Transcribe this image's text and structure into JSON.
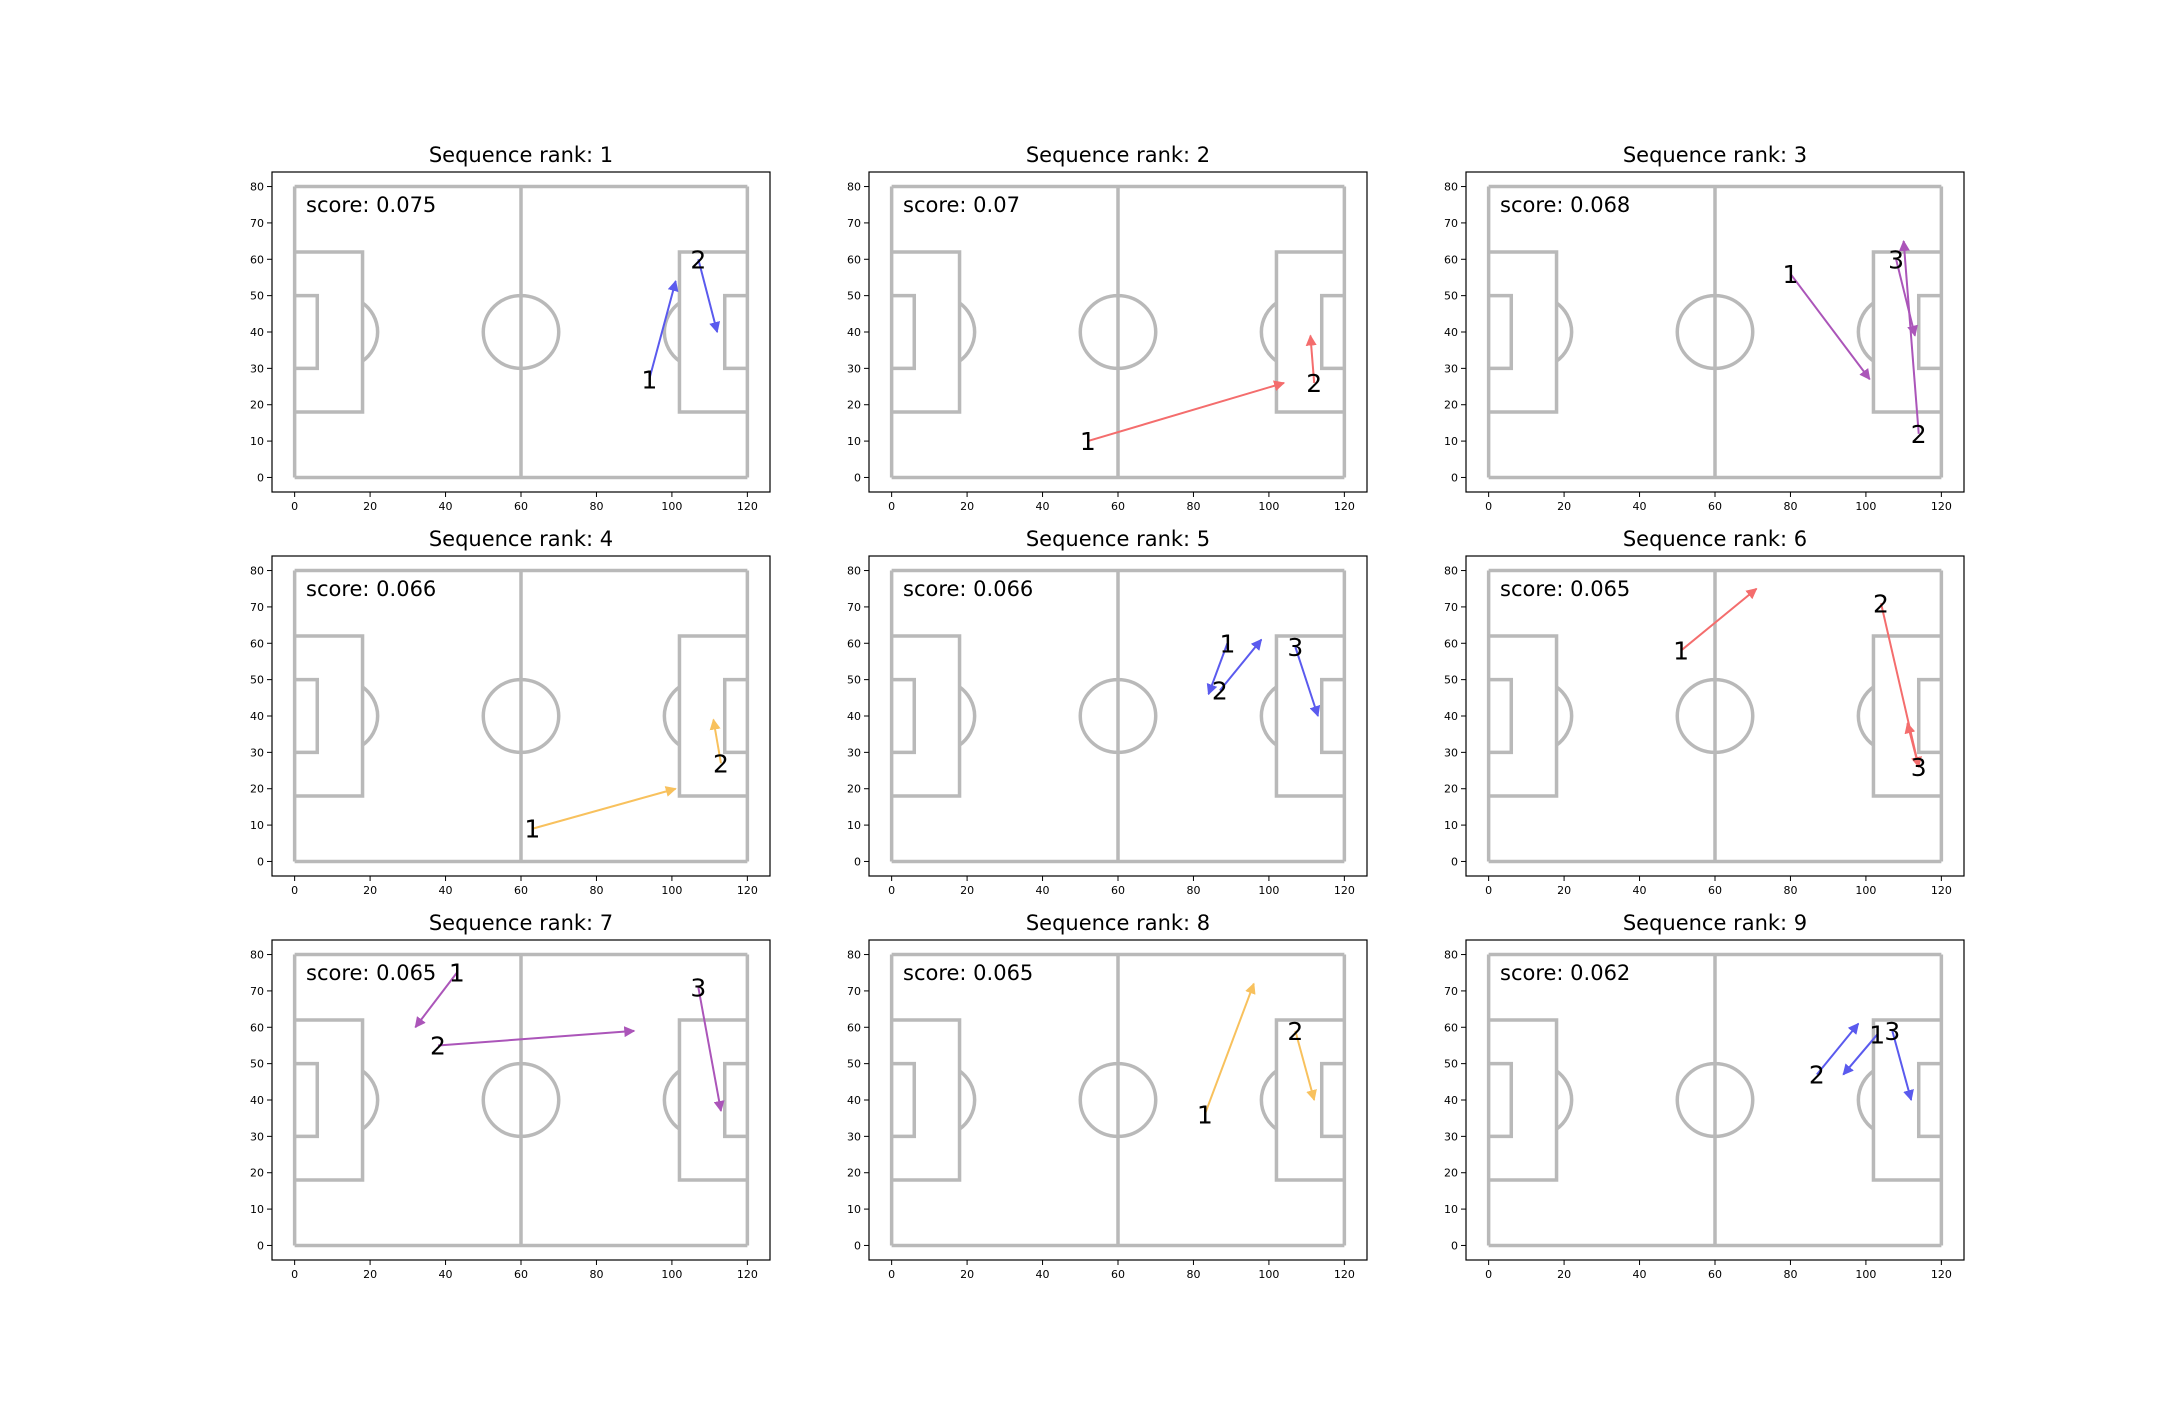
{
  "figure": {
    "pitch_length": 120,
    "pitch_width": 80,
    "xticks": [
      0,
      20,
      40,
      60,
      80,
      100,
      120
    ],
    "yticks": [
      0,
      10,
      20,
      30,
      40,
      50,
      60,
      70,
      80
    ],
    "xlim": [
      -6,
      126
    ],
    "ylim": [
      -4,
      84
    ]
  },
  "chart_data": [
    {
      "type": "scatter",
      "title": "Sequence rank: 1",
      "score_text": "score: 0.075",
      "color": "#5a5aee",
      "actions": [
        {
          "label": "1",
          "start": [
            94,
            27
          ],
          "end": [
            101,
            54
          ]
        },
        {
          "label": "2",
          "start": [
            107,
            60
          ],
          "end": [
            112,
            40
          ]
        }
      ]
    },
    {
      "type": "scatter",
      "title": "Sequence rank: 2",
      "score_text": "score: 0.07",
      "color": "#f46d6d",
      "actions": [
        {
          "label": "1",
          "start": [
            52,
            10
          ],
          "end": [
            104,
            26
          ]
        },
        {
          "label": "2",
          "start": [
            112,
            26
          ],
          "end": [
            111,
            39
          ]
        }
      ]
    },
    {
      "type": "scatter",
      "title": "Sequence rank: 3",
      "score_text": "score: 0.068",
      "color": "#ab55b9",
      "actions": [
        {
          "label": "1",
          "start": [
            80,
            56
          ],
          "end": [
            101,
            27
          ]
        },
        {
          "label": "2",
          "start": [
            114,
            12
          ],
          "end": [
            110,
            65
          ]
        },
        {
          "label": "3",
          "start": [
            108,
            60
          ],
          "end": [
            113,
            39
          ]
        }
      ]
    },
    {
      "type": "scatter",
      "title": "Sequence rank: 4",
      "score_text": "score: 0.066",
      "color": "#f8c15d",
      "actions": [
        {
          "label": "1",
          "start": [
            63,
            9
          ],
          "end": [
            101,
            20
          ]
        },
        {
          "label": "2",
          "start": [
            113,
            27
          ],
          "end": [
            111,
            39
          ]
        }
      ]
    },
    {
      "type": "scatter",
      "title": "Sequence rank: 5",
      "score_text": "score: 0.066",
      "color": "#5a5aee",
      "actions": [
        {
          "label": "1",
          "start": [
            89,
            60
          ],
          "end": [
            84,
            46
          ]
        },
        {
          "label": "2",
          "start": [
            87,
            47
          ],
          "end": [
            98,
            61
          ]
        },
        {
          "label": "3",
          "start": [
            107,
            59
          ],
          "end": [
            113,
            40
          ]
        }
      ]
    },
    {
      "type": "scatter",
      "title": "Sequence rank: 6",
      "score_text": "score: 0.065",
      "color": "#f46d6d",
      "actions": [
        {
          "label": "1",
          "start": [
            51,
            58
          ],
          "end": [
            71,
            75
          ]
        },
        {
          "label": "2",
          "start": [
            104,
            71
          ],
          "end": [
            114,
            26
          ]
        },
        {
          "label": "3",
          "start": [
            114,
            26
          ],
          "end": [
            111,
            38
          ]
        }
      ]
    },
    {
      "type": "scatter",
      "title": "Sequence rank: 7",
      "score_text": "score: 0.065",
      "color": "#ab55b9",
      "actions": [
        {
          "label": "1",
          "start": [
            43,
            75
          ],
          "end": [
            32,
            60
          ]
        },
        {
          "label": "2",
          "start": [
            38,
            55
          ],
          "end": [
            90,
            59
          ]
        },
        {
          "label": "3",
          "start": [
            107,
            71
          ],
          "end": [
            113,
            37
          ]
        }
      ]
    },
    {
      "type": "scatter",
      "title": "Sequence rank: 8",
      "score_text": "score: 0.065",
      "color": "#f8c15d",
      "actions": [
        {
          "label": "1",
          "start": [
            83,
            36
          ],
          "end": [
            96,
            72
          ]
        },
        {
          "label": "2",
          "start": [
            107,
            59
          ],
          "end": [
            112,
            40
          ]
        }
      ]
    },
    {
      "type": "scatter",
      "title": "Sequence rank: 9",
      "score_text": "score: 0.062",
      "color": "#5a5aee",
      "actions": [
        {
          "label": "1",
          "start": [
            103,
            58
          ],
          "end": [
            94,
            47
          ]
        },
        {
          "label": "2",
          "start": [
            87,
            47
          ],
          "end": [
            98,
            61
          ]
        },
        {
          "label": "3",
          "start": [
            107,
            59
          ],
          "end": [
            112,
            40
          ]
        }
      ]
    }
  ]
}
